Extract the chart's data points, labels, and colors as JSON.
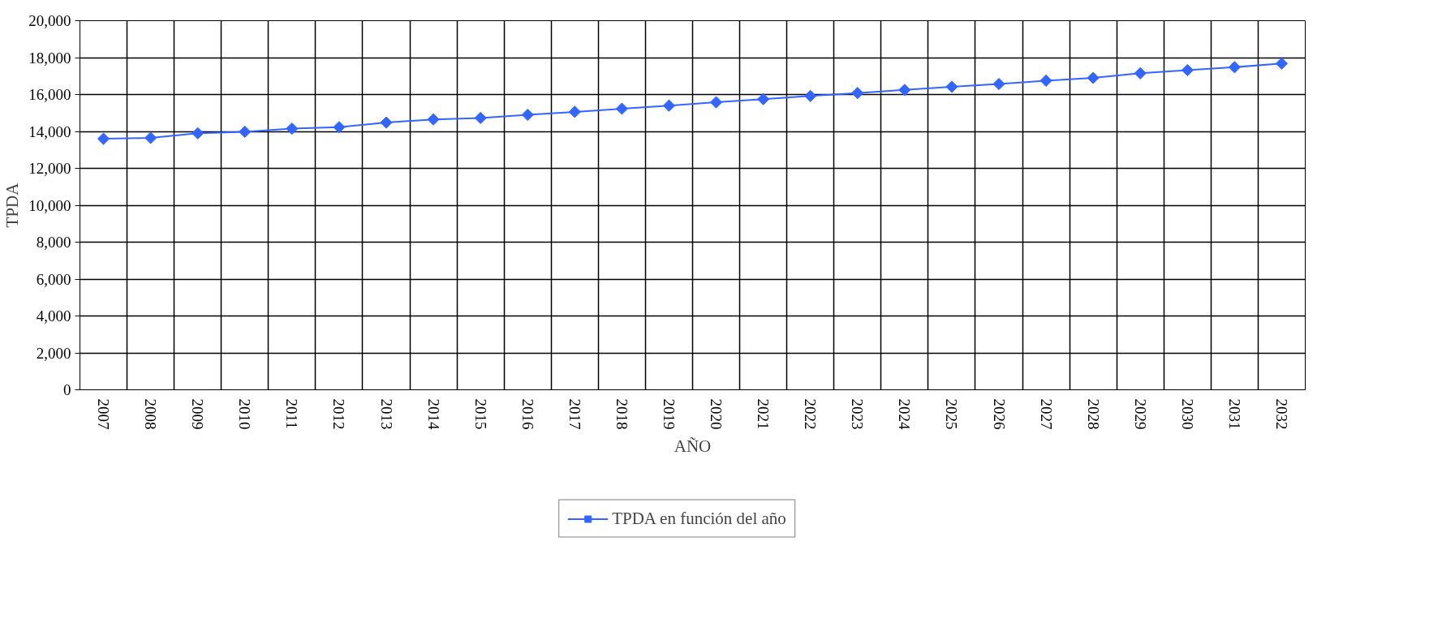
{
  "chart_data": {
    "type": "line",
    "xlabel": "AÑO",
    "ylabel": "TPDA",
    "categories": [
      "2007",
      "2008",
      "2009",
      "2010",
      "2011",
      "2012",
      "2013",
      "2014",
      "2015",
      "2016",
      "2017",
      "2018",
      "2019",
      "2020",
      "2021",
      "2022",
      "2023",
      "2024",
      "2025",
      "2026",
      "2027",
      "2028",
      "2029",
      "2030",
      "2031",
      "2032"
    ],
    "series": [
      {
        "name": "TPDA en función del año",
        "color": "#3366ff",
        "values": [
          13600,
          13650,
          13900,
          13980,
          14150,
          14230,
          14480,
          14650,
          14730,
          14900,
          15060,
          15230,
          15400,
          15580,
          15750,
          15920,
          16080,
          16250,
          16420,
          16570,
          16750,
          16900,
          17150,
          17320,
          17480,
          17680
        ]
      }
    ],
    "ylim": [
      0,
      20000
    ],
    "yticks": [
      {
        "value": 0,
        "label": "0"
      },
      {
        "value": 2000,
        "label": "2,000"
      },
      {
        "value": 4000,
        "label": "4,000"
      },
      {
        "value": 6000,
        "label": "6,000"
      },
      {
        "value": 8000,
        "label": "8,000"
      },
      {
        "value": 10000,
        "label": "10,000"
      },
      {
        "value": 12000,
        "label": "12,000"
      },
      {
        "value": 14000,
        "label": "14,000"
      },
      {
        "value": 16000,
        "label": "16,000"
      },
      {
        "value": 18000,
        "label": "18,000"
      },
      {
        "value": 20000,
        "label": "20,000"
      }
    ],
    "grid": true,
    "legend": "bottom",
    "marker": "diamond",
    "line_style": "solid"
  }
}
